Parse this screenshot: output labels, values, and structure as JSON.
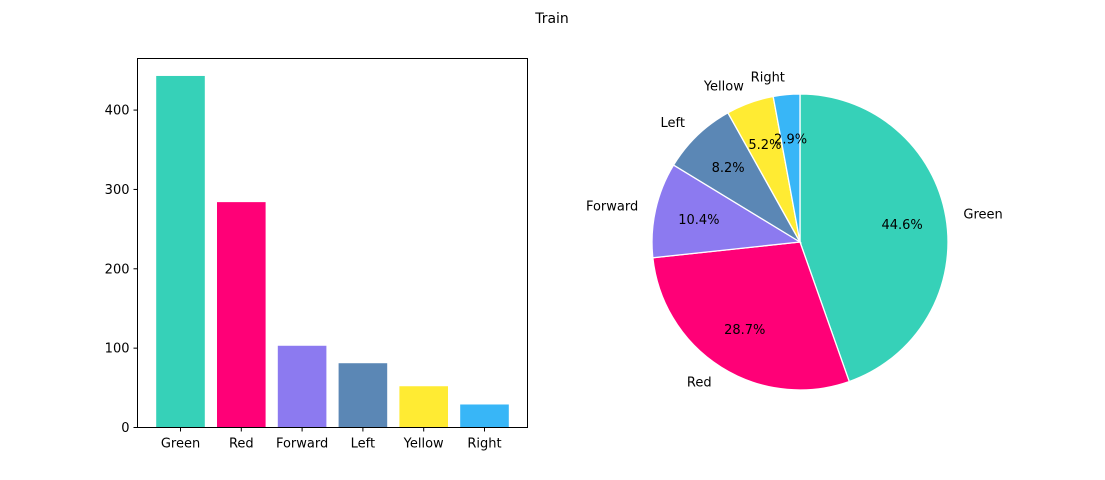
{
  "figure": {
    "title": "Train"
  },
  "chart_data": [
    {
      "type": "bar",
      "categories": [
        "Green",
        "Red",
        "Forward",
        "Left",
        "Yellow",
        "Right"
      ],
      "values": [
        443,
        284,
        103,
        81,
        52,
        29
      ],
      "colors": [
        "#36d1b8",
        "#ff0077",
        "#8c7af0",
        "#5b87b5",
        "#ffeb33",
        "#38b6f7"
      ],
      "ylim": [
        0,
        465
      ],
      "yticks": [
        0,
        100,
        200,
        300,
        400
      ],
      "grid": false
    },
    {
      "type": "pie",
      "labels": [
        "Green",
        "Red",
        "Forward",
        "Left",
        "Yellow",
        "Right"
      ],
      "percent_labels": [
        "44.6%",
        "28.7%",
        "10.4%",
        "8.2%",
        "5.2%",
        "2.9%"
      ],
      "values": [
        44.6,
        28.7,
        10.4,
        8.2,
        5.2,
        2.9
      ],
      "colors": [
        "#36d1b8",
        "#ff0077",
        "#8c7af0",
        "#5b87b5",
        "#ffeb33",
        "#38b6f7"
      ],
      "start_angle_deg": 90,
      "direction": "clockwise"
    }
  ]
}
